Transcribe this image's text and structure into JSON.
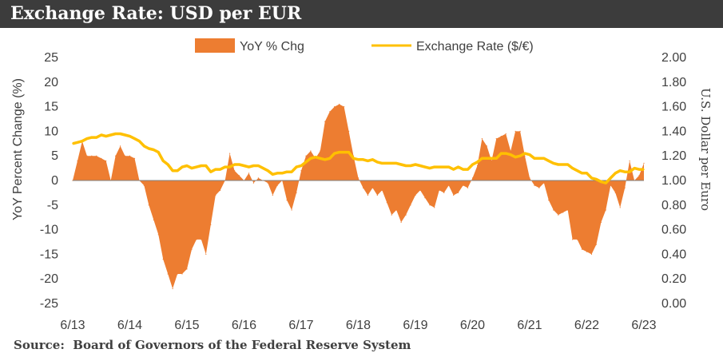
{
  "title": "Exchange Rate: USD per EUR",
  "source": "Source:  Board of Governors of the Federal Reserve System",
  "colors": {
    "yoy": "#ED7D31",
    "rate": "#FFC000",
    "title_bg": "#3c3c3c"
  },
  "chart_data": {
    "type": "area",
    "xlabel": "",
    "ylabel": "YoY Percent Change (%)",
    "y2label": "U.S. Dollar per Euro",
    "ylim": [
      -25,
      25
    ],
    "y2lim": [
      0,
      2
    ],
    "yticks": [
      "25",
      "20",
      "15",
      "10",
      "5",
      "0",
      "-5",
      "-10",
      "-15",
      "-20",
      "-25"
    ],
    "y2ticks": [
      "2.00",
      "1.80",
      "1.60",
      "1.40",
      "1.20",
      "1.00",
      "0.80",
      "0.60",
      "0.40",
      "0.20",
      "0.00"
    ],
    "x_ticks": [
      "6/13",
      "6/14",
      "6/15",
      "6/16",
      "6/17",
      "6/18",
      "6/19",
      "6/20",
      "6/21",
      "6/22",
      "6/23"
    ],
    "legend": {
      "placement": "top",
      "yoy_label": "YoY % Chg",
      "rate_label": "Exchange Rate ($/€)"
    },
    "series": [
      {
        "name": "YoY % Chg",
        "kind": "area",
        "axis": "left",
        "points": [
          [
            "6/13",
            0
          ],
          [
            "7/13",
            4
          ],
          [
            "8/13",
            8
          ],
          [
            "9/13",
            5
          ],
          [
            "10/13",
            5
          ],
          [
            "11/13",
            5
          ],
          [
            "12/13",
            4.5
          ],
          [
            "1/14",
            4
          ],
          [
            "2/14",
            0
          ],
          [
            "3/14",
            5
          ],
          [
            "4/14",
            7
          ],
          [
            "5/14",
            5
          ],
          [
            "6/14",
            5
          ],
          [
            "7/14",
            4.5
          ],
          [
            "8/14",
            0
          ],
          [
            "9/14",
            -1
          ],
          [
            "10/14",
            -5
          ],
          [
            "11/14",
            -8
          ],
          [
            "12/14",
            -11
          ],
          [
            "1/15",
            -16
          ],
          [
            "2/15",
            -19
          ],
          [
            "3/15",
            -22
          ],
          [
            "4/15",
            -19
          ],
          [
            "5/15",
            -19
          ],
          [
            "6/15",
            -18
          ],
          [
            "7/15",
            -14
          ],
          [
            "8/15",
            -12
          ],
          [
            "9/15",
            -12
          ],
          [
            "10/15",
            -15
          ],
          [
            "11/15",
            -9
          ],
          [
            "12/15",
            -3
          ],
          [
            "1/16",
            -2
          ],
          [
            "2/16",
            0
          ],
          [
            "3/16",
            5.5
          ],
          [
            "4/16",
            2
          ],
          [
            "5/16",
            1
          ],
          [
            "6/16",
            0
          ],
          [
            "7/16",
            1.5
          ],
          [
            "8/16",
            -0.5
          ],
          [
            "9/16",
            0.5
          ],
          [
            "10/16",
            0
          ],
          [
            "11/16",
            -0.5
          ],
          [
            "12/16",
            -3
          ],
          [
            "1/17",
            -1
          ],
          [
            "2/17",
            0
          ],
          [
            "3/17",
            -4
          ],
          [
            "4/17",
            -6
          ],
          [
            "5/17",
            -2.5
          ],
          [
            "6/17",
            2
          ],
          [
            "7/17",
            5
          ],
          [
            "8/17",
            6
          ],
          [
            "9/17",
            4.5
          ],
          [
            "10/17",
            6
          ],
          [
            "11/17",
            12
          ],
          [
            "12/17",
            14
          ],
          [
            "1/18",
            15
          ],
          [
            "2/18",
            15.5
          ],
          [
            "3/18",
            15
          ],
          [
            "4/18",
            10
          ],
          [
            "5/18",
            5
          ],
          [
            "6/18",
            0.5
          ],
          [
            "7/18",
            -1.5
          ],
          [
            "8/18",
            -3
          ],
          [
            "9/18",
            -1.5
          ],
          [
            "10/18",
            -3
          ],
          [
            "11/18",
            -2
          ],
          [
            "12/18",
            -4.5
          ],
          [
            "1/19",
            -7
          ],
          [
            "2/19",
            -6
          ],
          [
            "3/19",
            -8.5
          ],
          [
            "4/19",
            -7
          ],
          [
            "5/19",
            -5
          ],
          [
            "6/19",
            -3
          ],
          [
            "7/19",
            -2
          ],
          [
            "8/19",
            -3.5
          ],
          [
            "9/19",
            -5
          ],
          [
            "10/19",
            -5.5
          ],
          [
            "11/19",
            -2
          ],
          [
            "12/19",
            -2.5
          ],
          [
            "1/20",
            -1
          ],
          [
            "2/20",
            -3
          ],
          [
            "3/20",
            -2.5
          ],
          [
            "4/20",
            -1
          ],
          [
            "5/20",
            -1.5
          ],
          [
            "6/20",
            0.5
          ],
          [
            "7/20",
            3
          ],
          [
            "8/20",
            8.5
          ],
          [
            "9/20",
            7
          ],
          [
            "10/20",
            4
          ],
          [
            "11/20",
            8.5
          ],
          [
            "12/20",
            9
          ],
          [
            "1/21",
            9.5
          ],
          [
            "2/21",
            6
          ],
          [
            "3/21",
            10
          ],
          [
            "4/21",
            10
          ],
          [
            "5/21",
            5
          ],
          [
            "6/21",
            0.5
          ],
          [
            "7/21",
            -1
          ],
          [
            "8/21",
            -1.5
          ],
          [
            "9/21",
            -0.5
          ],
          [
            "10/21",
            -4
          ],
          [
            "11/21",
            -6
          ],
          [
            "12/21",
            -7
          ],
          [
            "1/22",
            -6.5
          ],
          [
            "2/22",
            -6
          ],
          [
            "3/22",
            -12
          ],
          [
            "4/22",
            -12
          ],
          [
            "5/22",
            -14
          ],
          [
            "6/22",
            -14.5
          ],
          [
            "7/22",
            -15
          ],
          [
            "8/22",
            -13
          ],
          [
            "9/22",
            -8.5
          ],
          [
            "10/22",
            -6
          ],
          [
            "11/22",
            -1
          ],
          [
            "12/22",
            -2.5
          ],
          [
            "1/23",
            -5.5
          ],
          [
            "2/23",
            -1.5
          ],
          [
            "3/23",
            4
          ],
          [
            "4/23",
            0
          ],
          [
            "5/23",
            1
          ],
          [
            "6/23",
            3.5
          ]
        ]
      },
      {
        "name": "Exchange Rate ($/€)",
        "kind": "line",
        "axis": "right",
        "points": [
          [
            "6/13",
            1.3
          ],
          [
            "7/13",
            1.31
          ],
          [
            "8/13",
            1.32
          ],
          [
            "9/13",
            1.34
          ],
          [
            "10/13",
            1.35
          ],
          [
            "11/13",
            1.35
          ],
          [
            "12/13",
            1.37
          ],
          [
            "1/14",
            1.36
          ],
          [
            "2/14",
            1.37
          ],
          [
            "3/14",
            1.38
          ],
          [
            "4/14",
            1.38
          ],
          [
            "5/14",
            1.37
          ],
          [
            "6/14",
            1.36
          ],
          [
            "7/14",
            1.34
          ],
          [
            "8/14",
            1.32
          ],
          [
            "9/14",
            1.28
          ],
          [
            "10/14",
            1.26
          ],
          [
            "11/14",
            1.25
          ],
          [
            "12/14",
            1.23
          ],
          [
            "1/15",
            1.16
          ],
          [
            "2/15",
            1.13
          ],
          [
            "3/15",
            1.08
          ],
          [
            "4/15",
            1.08
          ],
          [
            "5/15",
            1.11
          ],
          [
            "6/15",
            1.12
          ],
          [
            "7/15",
            1.1
          ],
          [
            "8/15",
            1.11
          ],
          [
            "9/15",
            1.12
          ],
          [
            "10/15",
            1.12
          ],
          [
            "11/15",
            1.07
          ],
          [
            "12/15",
            1.09
          ],
          [
            "1/16",
            1.09
          ],
          [
            "2/16",
            1.11
          ],
          [
            "3/16",
            1.11
          ],
          [
            "4/16",
            1.13
          ],
          [
            "5/16",
            1.13
          ],
          [
            "6/16",
            1.12
          ],
          [
            "7/16",
            1.11
          ],
          [
            "8/16",
            1.12
          ],
          [
            "9/16",
            1.12
          ],
          [
            "10/16",
            1.1
          ],
          [
            "11/16",
            1.08
          ],
          [
            "12/16",
            1.05
          ],
          [
            "1/17",
            1.06
          ],
          [
            "2/17",
            1.06
          ],
          [
            "3/17",
            1.07
          ],
          [
            "4/17",
            1.07
          ],
          [
            "5/17",
            1.11
          ],
          [
            "6/17",
            1.12
          ],
          [
            "7/17",
            1.15
          ],
          [
            "8/17",
            1.18
          ],
          [
            "9/17",
            1.19
          ],
          [
            "10/17",
            1.18
          ],
          [
            "11/17",
            1.17
          ],
          [
            "12/17",
            1.18
          ],
          [
            "1/18",
            1.22
          ],
          [
            "2/18",
            1.23
          ],
          [
            "3/18",
            1.23
          ],
          [
            "4/18",
            1.23
          ],
          [
            "5/18",
            1.18
          ],
          [
            "6/18",
            1.17
          ],
          [
            "7/18",
            1.17
          ],
          [
            "8/18",
            1.16
          ],
          [
            "9/18",
            1.17
          ],
          [
            "10/18",
            1.15
          ],
          [
            "11/18",
            1.14
          ],
          [
            "12/18",
            1.14
          ],
          [
            "1/19",
            1.14
          ],
          [
            "2/19",
            1.14
          ],
          [
            "3/19",
            1.13
          ],
          [
            "4/19",
            1.12
          ],
          [
            "5/19",
            1.12
          ],
          [
            "6/19",
            1.13
          ],
          [
            "7/19",
            1.12
          ],
          [
            "8/19",
            1.11
          ],
          [
            "9/19",
            1.1
          ],
          [
            "10/19",
            1.11
          ],
          [
            "11/19",
            1.11
          ],
          [
            "12/19",
            1.11
          ],
          [
            "1/20",
            1.11
          ],
          [
            "2/20",
            1.09
          ],
          [
            "3/20",
            1.11
          ],
          [
            "4/20",
            1.09
          ],
          [
            "5/20",
            1.09
          ],
          [
            "6/20",
            1.13
          ],
          [
            "7/20",
            1.15
          ],
          [
            "8/20",
            1.18
          ],
          [
            "9/20",
            1.18
          ],
          [
            "10/20",
            1.18
          ],
          [
            "11/20",
            1.18
          ],
          [
            "12/20",
            1.22
          ],
          [
            "1/21",
            1.22
          ],
          [
            "2/21",
            1.21
          ],
          [
            "3/21",
            1.19
          ],
          [
            "4/21",
            1.2
          ],
          [
            "5/21",
            1.22
          ],
          [
            "6/21",
            1.21
          ],
          [
            "7/21",
            1.18
          ],
          [
            "8/21",
            1.18
          ],
          [
            "9/21",
            1.18
          ],
          [
            "10/21",
            1.16
          ],
          [
            "11/21",
            1.14
          ],
          [
            "12/21",
            1.13
          ],
          [
            "1/22",
            1.13
          ],
          [
            "2/22",
            1.13
          ],
          [
            "3/22",
            1.1
          ],
          [
            "4/22",
            1.08
          ],
          [
            "5/22",
            1.06
          ],
          [
            "6/22",
            1.06
          ],
          [
            "7/22",
            1.02
          ],
          [
            "8/22",
            1.01
          ],
          [
            "9/22",
            0.99
          ],
          [
            "10/22",
            0.98
          ],
          [
            "11/22",
            1.02
          ],
          [
            "12/22",
            1.06
          ],
          [
            "1/23",
            1.08
          ],
          [
            "2/23",
            1.07
          ],
          [
            "3/23",
            1.07
          ],
          [
            "4/23",
            1.1
          ],
          [
            "5/23",
            1.09
          ],
          [
            "6/23",
            1.09
          ]
        ]
      }
    ]
  }
}
